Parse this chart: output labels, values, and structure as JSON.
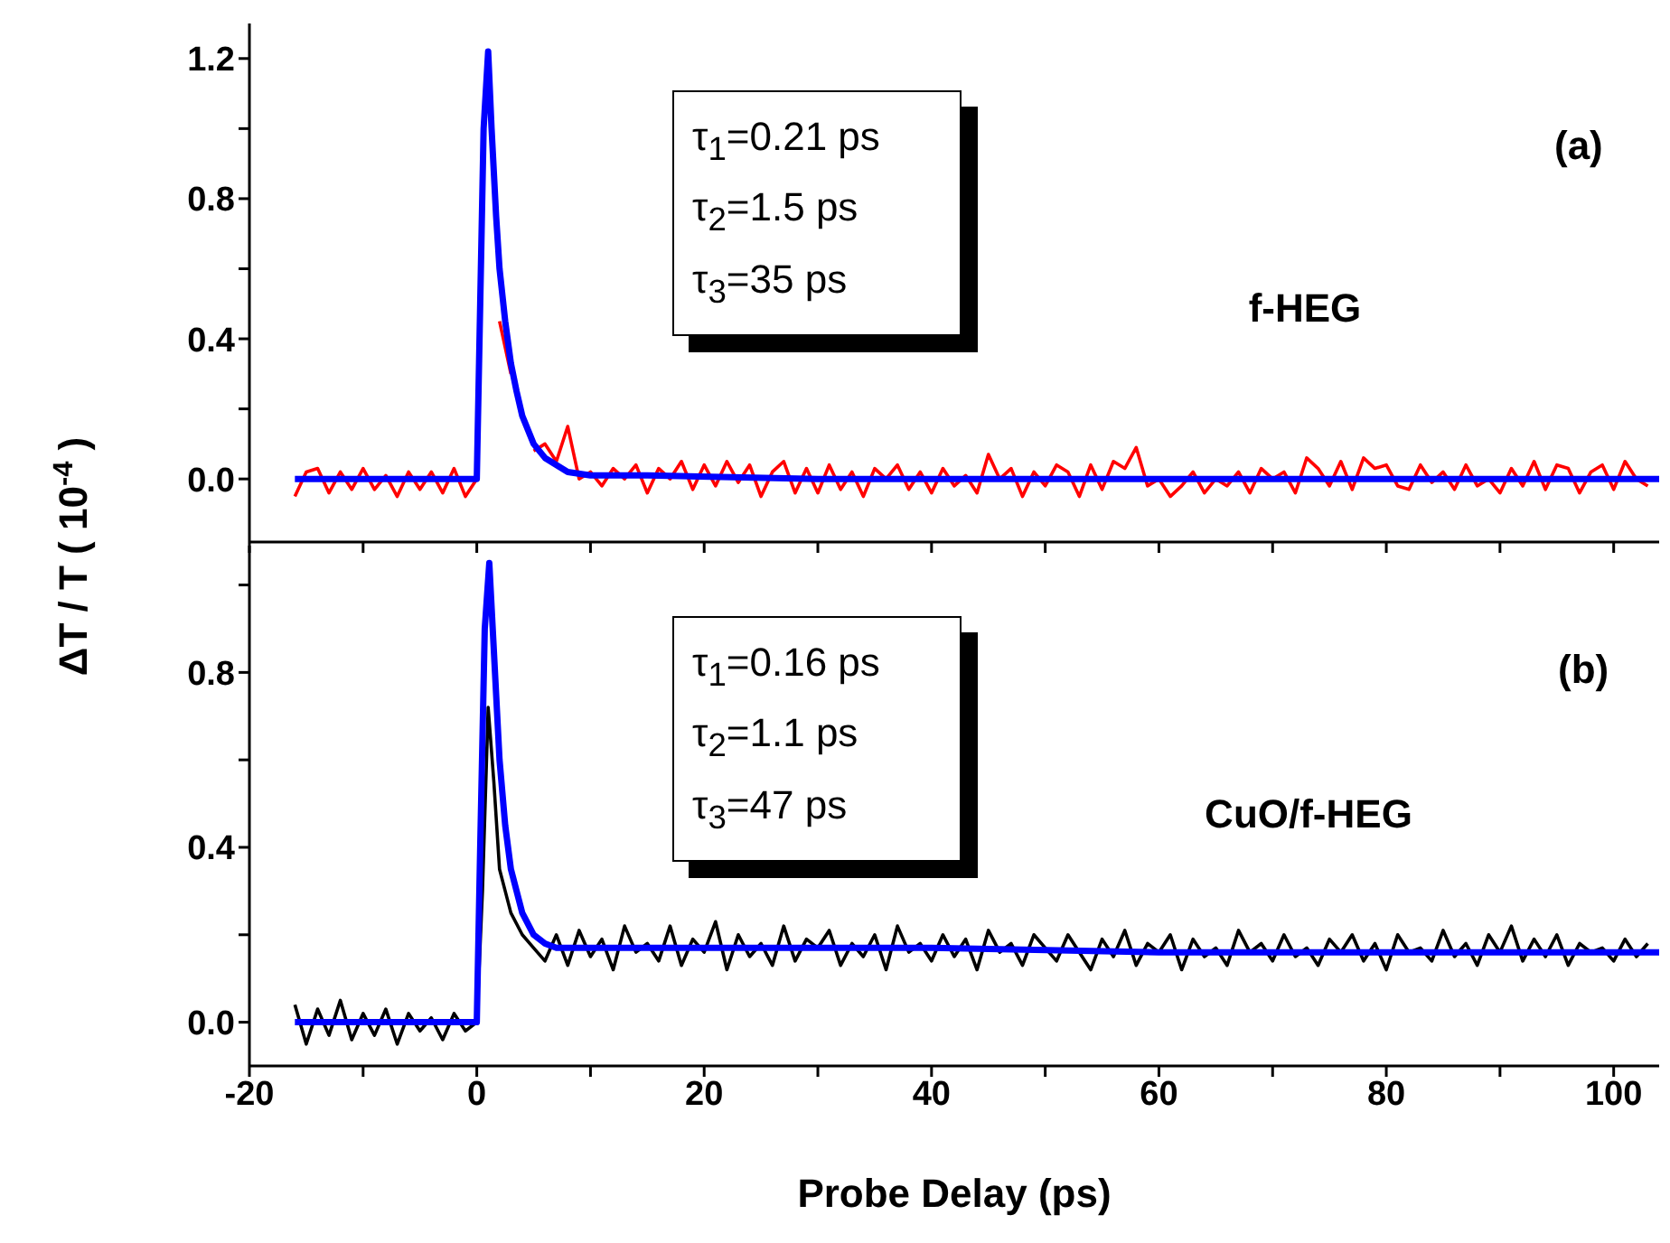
{
  "chart_data": [
    {
      "type": "line",
      "ylabel": "ΔT / T ( 10$^{-4}$ )",
      "tick_labels": "y",
      "xlim": [
        -20,
        104
      ],
      "xticks": [
        {
          "value": -20,
          "label": null
        },
        {
          "value": -10,
          "label": null
        },
        {
          "value": 0,
          "label": null
        },
        {
          "value": 10,
          "label": null
        },
        {
          "value": 20,
          "label": null
        },
        {
          "value": 30,
          "label": null
        },
        {
          "value": 40,
          "label": null
        },
        {
          "value": 50,
          "label": null
        },
        {
          "value": 60,
          "label": null
        },
        {
          "value": 70,
          "label": null
        },
        {
          "value": 80,
          "label": null
        },
        {
          "value": 90,
          "label": null
        },
        {
          "value": 100,
          "label": null
        }
      ],
      "ylim": [
        -0.18,
        1.3
      ],
      "yticks": [
        {
          "value": 0,
          "label": "0.0"
        },
        {
          "value": 0.2,
          "label": null
        },
        0.4,
        {
          "value": 0.6,
          "label": null
        },
        0.8,
        {
          "value": 1.0,
          "label": null
        },
        1.2
      ],
      "annotations": [
        "τ$_{1}$=0.21 ps",
        "τ$_{2}$=1.5 ps",
        "τ$_{3}$=35 ps",
        "f-HEG",
        "(a)"
      ],
      "series": [
        {
          "color": "#ff0000",
          "x": [
            -16,
            -15,
            -14,
            -13,
            -12,
            -11,
            -10,
            -9,
            -8,
            -7,
            -6,
            -5,
            -4,
            -3,
            -2,
            -1,
            0,
            0.5,
            1,
            1.5,
            2,
            3,
            4,
            5,
            6,
            7,
            8,
            9,
            10,
            11,
            12,
            13,
            14,
            15,
            16,
            17,
            18,
            19,
            20,
            21,
            22,
            23,
            24,
            25,
            26,
            27,
            28,
            29,
            30,
            31,
            32,
            33,
            34,
            35,
            36,
            37,
            38,
            39,
            40,
            41,
            42,
            43,
            44,
            45,
            46,
            47,
            48,
            49,
            50,
            51,
            52,
            53,
            54,
            55,
            56,
            57,
            58,
            59,
            60,
            61,
            62,
            63,
            64,
            65,
            66,
            67,
            68,
            69,
            70,
            71,
            72,
            73,
            74,
            75,
            76,
            77,
            78,
            79,
            80,
            81,
            82,
            83,
            84,
            85,
            86,
            87,
            88,
            89,
            90,
            91,
            92,
            93,
            94,
            95,
            96,
            97,
            98,
            99,
            100,
            101,
            102,
            103
          ],
          "values": [
            -0.05,
            0.02,
            0.03,
            -0.04,
            0.02,
            -0.03,
            0.03,
            -0.03,
            0.01,
            -0.05,
            0.02,
            -0.03,
            0.02,
            -0.04,
            0.03,
            -0.05,
            0.0,
            null,
            null,
            null,
            0.45,
            0.3,
            null,
            0.08,
            0.1,
            0.05,
            0.15,
            0.0,
            0.02,
            -0.02,
            0.03,
            0.0,
            0.04,
            -0.04,
            0.03,
            0.0,
            0.05,
            -0.03,
            0.04,
            -0.02,
            0.05,
            -0.01,
            0.04,
            -0.05,
            0.02,
            0.05,
            -0.04,
            0.03,
            -0.04,
            0.04,
            -0.03,
            0.02,
            -0.05,
            0.03,
            0.0,
            0.04,
            -0.03,
            0.02,
            -0.04,
            0.03,
            -0.02,
            0.01,
            -0.04,
            0.07,
            0.0,
            0.03,
            -0.05,
            0.02,
            -0.02,
            0.04,
            0.02,
            -0.05,
            0.04,
            -0.03,
            0.05,
            0.03,
            0.09,
            -0.02,
            0.0,
            -0.05,
            -0.02,
            0.02,
            -0.04,
            0.0,
            -0.02,
            0.02,
            -0.04,
            0.03,
            0.0,
            0.02,
            -0.04,
            0.06,
            0.03,
            -0.02,
            0.05,
            -0.03,
            0.06,
            0.03,
            0.04,
            -0.02,
            -0.03,
            0.04,
            -0.01,
            0.02,
            -0.03,
            0.04,
            -0.02,
            0.0,
            -0.04,
            0.03,
            -0.02,
            0.05,
            -0.03,
            0.04,
            0.03,
            -0.04,
            0.02,
            0.04,
            -0.03,
            0.05,
            0.0,
            -0.02
          ]
        },
        {
          "color": "#0000ff",
          "x": [
            -16,
            0,
            0.3,
            0.6,
            1,
            1.3,
            1.7,
            2,
            2.5,
            3,
            3.5,
            4,
            5,
            6,
            7,
            8,
            10,
            15,
            30,
            60,
            104
          ],
          "values": [
            0,
            0,
            0.5,
            1.0,
            1.22,
            1.0,
            0.75,
            0.6,
            0.45,
            0.33,
            0.25,
            0.18,
            0.1,
            0.06,
            0.04,
            0.02,
            0.01,
            0.01,
            0,
            0,
            0
          ]
        }
      ]
    },
    {
      "type": "line",
      "xlabel": "Probe Delay (ps)",
      "xlim": [
        -20,
        104
      ],
      "xticks": [
        -20,
        {
          "value": -10,
          "label": null
        },
        0,
        {
          "value": 10,
          "label": null
        },
        20,
        {
          "value": 30,
          "label": null
        },
        40,
        {
          "value": 50,
          "label": null
        },
        60,
        {
          "value": 70,
          "label": null
        },
        80,
        {
          "value": 90,
          "label": null
        },
        100
      ],
      "ylim": [
        -0.1,
        1.09
      ],
      "yticks": [
        {
          "value": 0,
          "label": "0.0"
        },
        {
          "value": 0.2,
          "label": null
        },
        0.4,
        {
          "value": 0.6,
          "label": null
        },
        0.8,
        {
          "value": 1.0,
          "label": null
        }
      ],
      "annotations": [
        "τ$_{1}$=0.16 ps",
        "τ$_{2}$=1.1 ps",
        "τ$_{3}$=47 ps",
        "CuO/f-HEG",
        "(b)"
      ],
      "series": [
        {
          "color": "#000000",
          "x": [
            -16,
            -15,
            -14,
            -13,
            -12,
            -11,
            -10,
            -9,
            -8,
            -7,
            -6,
            -5,
            -4,
            -3,
            -2,
            -1,
            0,
            0.5,
            1,
            1.5,
            2,
            2.5,
            3,
            4,
            5,
            6,
            7,
            8,
            9,
            10,
            11,
            12,
            13,
            14,
            15,
            16,
            17,
            18,
            19,
            20,
            21,
            22,
            23,
            24,
            25,
            26,
            27,
            28,
            29,
            30,
            31,
            32,
            33,
            34,
            35,
            36,
            37,
            38,
            39,
            40,
            41,
            42,
            43,
            44,
            45,
            46,
            47,
            48,
            49,
            50,
            51,
            52,
            53,
            54,
            55,
            56,
            57,
            58,
            59,
            60,
            61,
            62,
            63,
            64,
            65,
            66,
            67,
            68,
            69,
            70,
            71,
            72,
            73,
            74,
            75,
            76,
            77,
            78,
            79,
            80,
            81,
            82,
            83,
            84,
            85,
            86,
            87,
            88,
            89,
            90,
            91,
            92,
            93,
            94,
            95,
            96,
            97,
            98,
            99,
            100,
            101,
            102,
            103
          ],
          "values": [
            0.04,
            -0.05,
            0.03,
            -0.03,
            0.05,
            -0.04,
            0.02,
            -0.03,
            0.03,
            -0.05,
            0.02,
            -0.02,
            0.01,
            -0.04,
            0.02,
            -0.02,
            0.0,
            0.3,
            0.72,
            0.55,
            0.35,
            0.3,
            0.25,
            0.2,
            0.17,
            0.14,
            0.2,
            0.13,
            0.21,
            0.15,
            0.19,
            0.12,
            0.22,
            0.16,
            0.18,
            0.14,
            0.22,
            0.13,
            0.19,
            0.16,
            0.23,
            0.12,
            0.2,
            0.15,
            0.18,
            0.13,
            0.22,
            0.14,
            0.19,
            0.17,
            0.21,
            0.13,
            0.18,
            0.15,
            0.2,
            0.12,
            0.22,
            0.16,
            0.18,
            0.14,
            0.2,
            0.15,
            0.19,
            0.12,
            0.21,
            0.16,
            0.18,
            0.13,
            0.2,
            0.17,
            0.14,
            0.2,
            0.16,
            0.12,
            0.19,
            0.15,
            0.21,
            0.13,
            0.18,
            0.16,
            0.2,
            0.12,
            0.19,
            0.15,
            0.17,
            0.13,
            0.21,
            0.16,
            0.18,
            0.14,
            0.2,
            0.15,
            0.17,
            0.13,
            0.19,
            0.16,
            0.2,
            0.14,
            0.18,
            0.12,
            0.2,
            0.16,
            0.17,
            0.14,
            0.21,
            0.15,
            0.18,
            0.13,
            0.2,
            0.16,
            0.22,
            0.14,
            0.19,
            0.15,
            0.2,
            0.13,
            0.18,
            0.16,
            0.17,
            0.14,
            0.19,
            0.15,
            0.18
          ]
        },
        {
          "color": "#0000ff",
          "x": [
            -16,
            0,
            0.3,
            0.7,
            1.1,
            1.5,
            2,
            2.5,
            3,
            4,
            5,
            6,
            7,
            10,
            20,
            40,
            60,
            80,
            104
          ],
          "values": [
            0,
            0,
            0.4,
            0.9,
            1.05,
            0.85,
            0.6,
            0.45,
            0.35,
            0.25,
            0.2,
            0.18,
            0.17,
            0.17,
            0.17,
            0.17,
            0.16,
            0.16,
            0.16
          ]
        }
      ]
    }
  ]
}
